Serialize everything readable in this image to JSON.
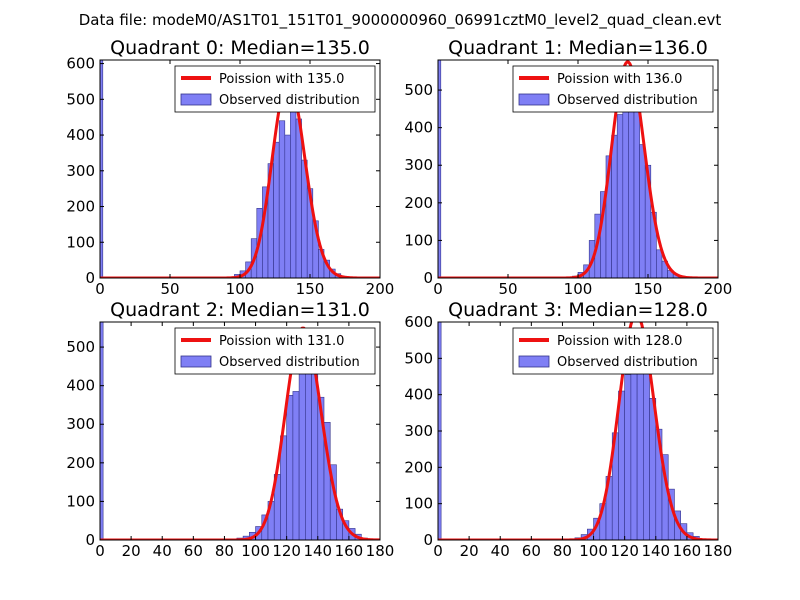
{
  "figure": {
    "suptitle": "Data file: modeM0/AS1T01_151T01_9000000960_06991cztM0_level2_quad_clean.evt"
  },
  "legend_labels": {
    "observed": "Observed distribution"
  },
  "colors": {
    "bar_fill": "#7f7ff5",
    "bar_edge": "#33338a",
    "curve": "#ee1111",
    "curve_light": "#f07f7f"
  },
  "chart_data": [
    {
      "type": "bar",
      "title": "Quadrant 0: Median=135.0",
      "legend_fit": "Poission with 135.0",
      "median": 135.0,
      "xlim": [
        0,
        200
      ],
      "ylim": [
        0,
        610
      ],
      "xticks": [
        0,
        50,
        100,
        150,
        200
      ],
      "yticks": [
        0,
        100,
        200,
        300,
        400,
        500,
        600
      ],
      "bin_width": 4,
      "zero_bin": 610,
      "bins": [
        [
          92,
          2
        ],
        [
          96,
          10
        ],
        [
          100,
          20
        ],
        [
          104,
          45
        ],
        [
          108,
          110
        ],
        [
          112,
          195
        ],
        [
          116,
          255
        ],
        [
          120,
          320
        ],
        [
          124,
          380
        ],
        [
          128,
          440
        ],
        [
          132,
          400
        ],
        [
          136,
          500
        ],
        [
          140,
          445
        ],
        [
          144,
          330
        ],
        [
          148,
          250
        ],
        [
          152,
          160
        ],
        [
          156,
          80
        ],
        [
          160,
          50
        ],
        [
          164,
          25
        ],
        [
          168,
          12
        ],
        [
          172,
          5
        ],
        [
          176,
          2
        ]
      ]
    },
    {
      "type": "bar",
      "title": "Quadrant 1: Median=136.0",
      "legend_fit": "Poission with 136.0",
      "median": 136.0,
      "xlim": [
        0,
        200
      ],
      "ylim": [
        0,
        580
      ],
      "xticks": [
        0,
        50,
        100,
        150,
        200
      ],
      "yticks": [
        0,
        100,
        200,
        300,
        400,
        500
      ],
      "bin_width": 4,
      "zero_bin": 580,
      "bins": [
        [
          96,
          5
        ],
        [
          100,
          15
        ],
        [
          104,
          35
        ],
        [
          108,
          100
        ],
        [
          112,
          170
        ],
        [
          116,
          230
        ],
        [
          120,
          325
        ],
        [
          124,
          380
        ],
        [
          128,
          435
        ],
        [
          132,
          490
        ],
        [
          136,
          550
        ],
        [
          140,
          480
        ],
        [
          144,
          355
        ],
        [
          148,
          300
        ],
        [
          152,
          175
        ],
        [
          156,
          75
        ],
        [
          160,
          45
        ],
        [
          164,
          20
        ],
        [
          168,
          10
        ],
        [
          172,
          5
        ],
        [
          176,
          2
        ]
      ]
    },
    {
      "type": "bar",
      "title": "Quadrant 2: Median=131.0",
      "legend_fit": "Poission with 131.0",
      "median": 131.0,
      "xlim": [
        0,
        180
      ],
      "ylim": [
        0,
        565
      ],
      "xticks": [
        0,
        20,
        40,
        60,
        80,
        100,
        120,
        140,
        160,
        180
      ],
      "yticks": [
        0,
        100,
        200,
        300,
        400,
        500
      ],
      "bin_width": 4,
      "zero_bin": 565,
      "bins": [
        [
          88,
          5
        ],
        [
          92,
          10
        ],
        [
          96,
          20
        ],
        [
          100,
          35
        ],
        [
          104,
          65
        ],
        [
          108,
          100
        ],
        [
          112,
          170
        ],
        [
          116,
          270
        ],
        [
          120,
          375
        ],
        [
          124,
          385
        ],
        [
          128,
          445
        ],
        [
          132,
          480
        ],
        [
          136,
          530
        ],
        [
          140,
          370
        ],
        [
          144,
          305
        ],
        [
          148,
          195
        ],
        [
          152,
          80
        ],
        [
          156,
          50
        ],
        [
          160,
          30
        ],
        [
          164,
          15
        ],
        [
          168,
          5
        ],
        [
          172,
          2
        ]
      ]
    },
    {
      "type": "bar",
      "title": "Quadrant 3: Median=128.0",
      "legend_fit": "Poission with 128.0",
      "median": 128.0,
      "xlim": [
        0,
        180
      ],
      "ylim": [
        0,
        600
      ],
      "xticks": [
        0,
        20,
        40,
        60,
        80,
        100,
        120,
        140,
        160,
        180
      ],
      "yticks": [
        0,
        100,
        200,
        300,
        400,
        500,
        600
      ],
      "bin_width": 4,
      "zero_bin": 600,
      "bins": [
        [
          84,
          3
        ],
        [
          88,
          6
        ],
        [
          92,
          15
        ],
        [
          96,
          30
        ],
        [
          100,
          60
        ],
        [
          104,
          100
        ],
        [
          108,
          175
        ],
        [
          112,
          295
        ],
        [
          116,
          410
        ],
        [
          120,
          455
        ],
        [
          124,
          580
        ],
        [
          128,
          500
        ],
        [
          132,
          550
        ],
        [
          136,
          390
        ],
        [
          140,
          305
        ],
        [
          144,
          235
        ],
        [
          148,
          140
        ],
        [
          152,
          80
        ],
        [
          156,
          45
        ],
        [
          160,
          20
        ],
        [
          164,
          10
        ],
        [
          168,
          3
        ]
      ]
    }
  ]
}
